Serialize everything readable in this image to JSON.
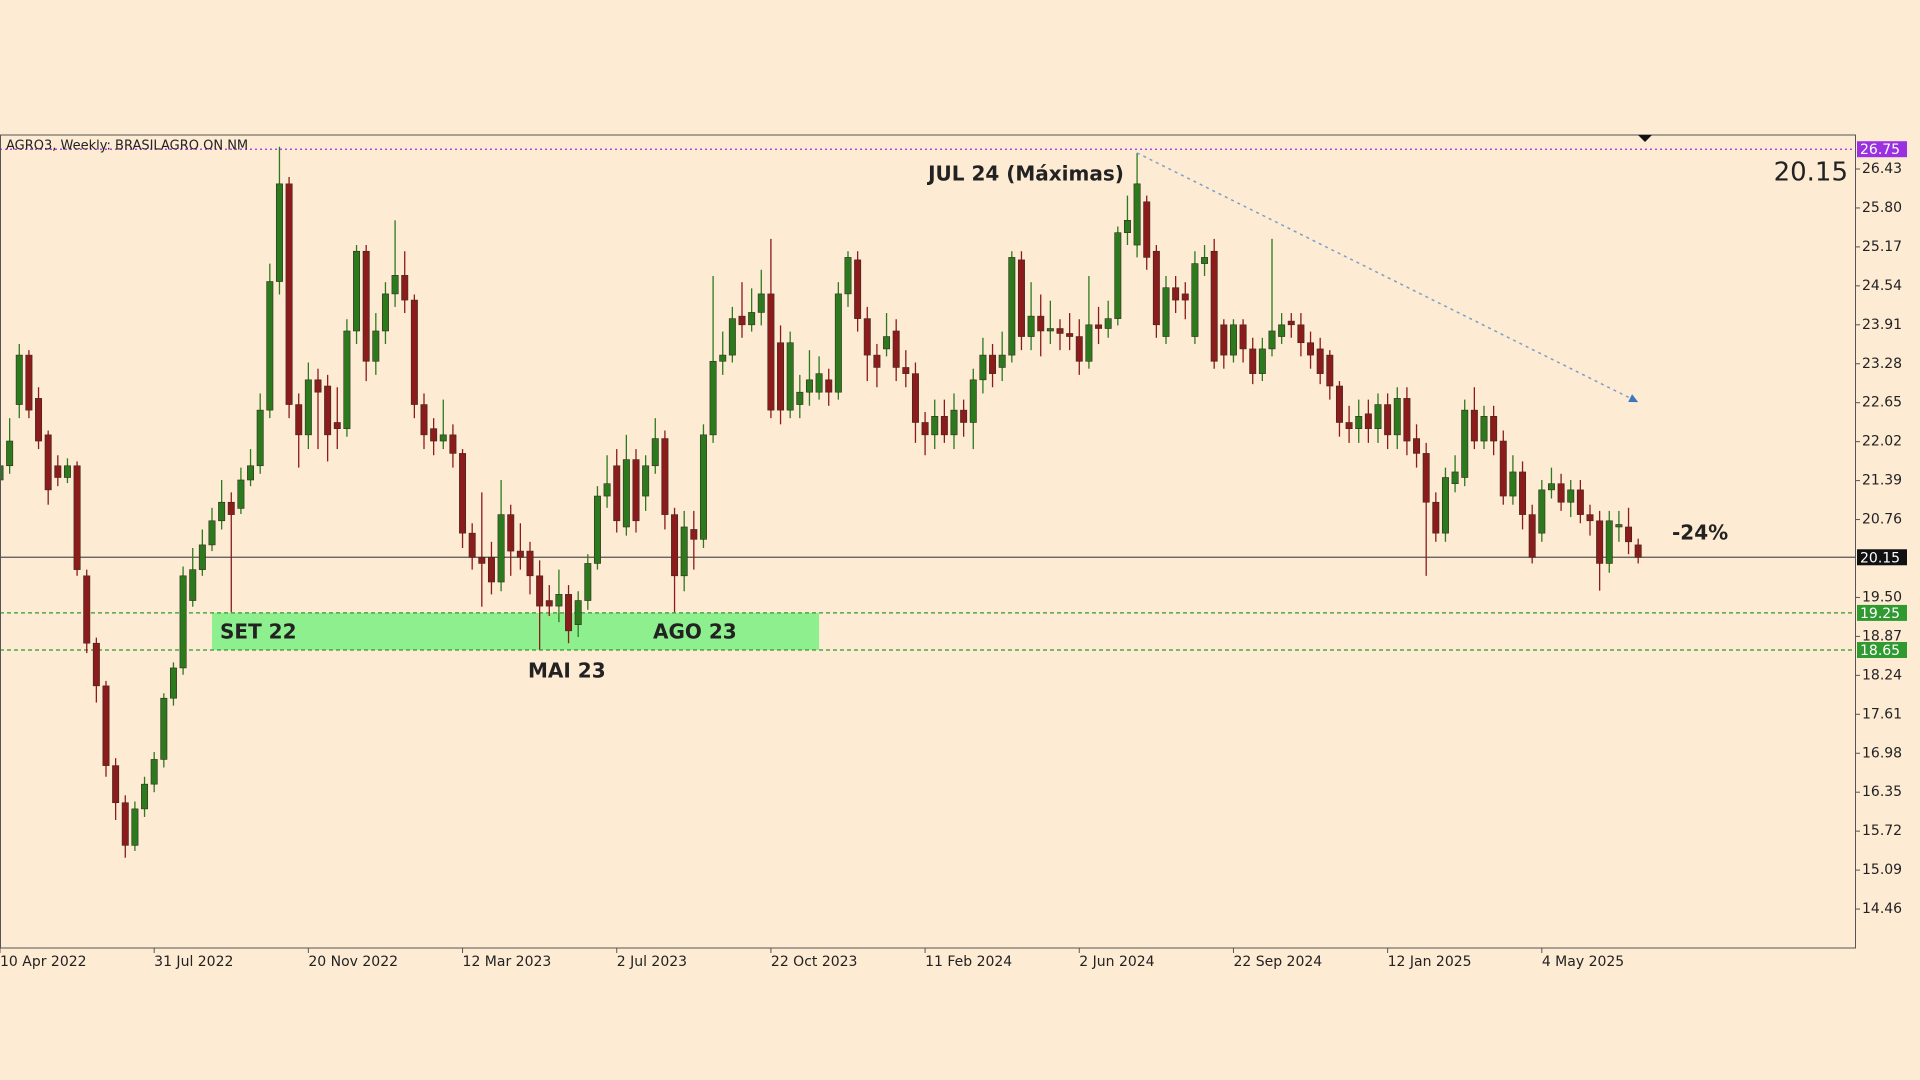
{
  "chart_data": {
    "type": "candlestick",
    "title": "AGRO3, Weekly:  BRASILAGRO  ON      NM",
    "up_color": "#2b7a1e",
    "down_color": "#8c1b1b",
    "candles": [
      [
        21.4,
        21.9,
        21.2,
        21.63
      ],
      [
        21.63,
        22.4,
        21.5,
        22.03
      ],
      [
        22.62,
        23.6,
        22.4,
        23.42
      ],
      [
        23.42,
        23.5,
        22.4,
        22.53
      ],
      [
        22.72,
        22.9,
        21.9,
        22.03
      ],
      [
        22.13,
        22.2,
        21.0,
        21.24
      ],
      [
        21.63,
        21.8,
        21.3,
        21.44
      ],
      [
        21.44,
        21.75,
        21.35,
        21.63
      ],
      [
        21.63,
        21.7,
        19.85,
        19.95
      ],
      [
        19.85,
        19.95,
        18.6,
        18.76
      ],
      [
        18.76,
        18.85,
        17.8,
        18.07
      ],
      [
        18.07,
        18.15,
        16.6,
        16.78
      ],
      [
        16.78,
        16.9,
        15.9,
        16.18
      ],
      [
        16.18,
        16.3,
        15.29,
        15.49
      ],
      [
        15.49,
        16.2,
        15.4,
        16.08
      ],
      [
        16.08,
        16.6,
        15.95,
        16.48
      ],
      [
        16.48,
        17.0,
        16.35,
        16.88
      ],
      [
        16.88,
        17.95,
        16.75,
        17.87
      ],
      [
        17.87,
        18.45,
        17.75,
        18.36
      ],
      [
        18.36,
        20.0,
        18.25,
        19.85
      ],
      [
        19.45,
        20.3,
        19.35,
        19.95
      ],
      [
        19.95,
        20.6,
        19.85,
        20.35
      ],
      [
        20.35,
        20.95,
        20.25,
        20.74
      ],
      [
        20.74,
        21.4,
        20.6,
        21.04
      ],
      [
        21.04,
        21.2,
        19.26,
        20.84
      ],
      [
        20.94,
        21.6,
        20.85,
        21.4
      ],
      [
        21.4,
        21.9,
        21.3,
        21.63
      ],
      [
        21.63,
        22.8,
        21.5,
        22.53
      ],
      [
        22.53,
        24.9,
        22.4,
        24.61
      ],
      [
        24.61,
        26.79,
        24.4,
        26.19
      ],
      [
        26.19,
        26.3,
        22.4,
        22.62
      ],
      [
        22.62,
        22.8,
        21.6,
        22.13
      ],
      [
        22.13,
        23.3,
        21.9,
        23.02
      ],
      [
        23.02,
        23.2,
        21.9,
        22.82
      ],
      [
        22.92,
        23.1,
        21.7,
        22.13
      ],
      [
        22.33,
        22.9,
        21.9,
        22.23
      ],
      [
        22.23,
        24.0,
        22.1,
        23.81
      ],
      [
        23.81,
        25.2,
        23.6,
        25.1
      ],
      [
        25.1,
        25.2,
        23.0,
        23.32
      ],
      [
        23.32,
        24.1,
        23.1,
        23.81
      ],
      [
        23.81,
        24.6,
        23.6,
        24.41
      ],
      [
        24.41,
        25.6,
        24.2,
        24.71
      ],
      [
        24.71,
        25.1,
        24.1,
        24.31
      ],
      [
        24.31,
        24.4,
        22.4,
        22.62
      ],
      [
        22.62,
        22.8,
        21.9,
        22.13
      ],
      [
        22.23,
        22.4,
        21.8,
        22.03
      ],
      [
        22.03,
        22.7,
        21.9,
        22.13
      ],
      [
        22.13,
        22.3,
        21.6,
        21.83
      ],
      [
        21.83,
        21.9,
        20.3,
        20.54
      ],
      [
        20.54,
        20.7,
        19.95,
        20.15
      ],
      [
        20.15,
        21.2,
        19.35,
        20.05
      ],
      [
        20.15,
        20.4,
        19.55,
        19.75
      ],
      [
        19.75,
        21.4,
        19.6,
        20.84
      ],
      [
        20.84,
        21.0,
        19.85,
        20.25
      ],
      [
        20.25,
        20.7,
        19.95,
        20.15
      ],
      [
        20.25,
        20.4,
        19.55,
        19.85
      ],
      [
        19.85,
        20.1,
        18.66,
        19.36
      ],
      [
        19.45,
        19.7,
        19.2,
        19.36
      ],
      [
        19.36,
        19.95,
        19.1,
        19.55
      ],
      [
        19.55,
        19.7,
        18.76,
        18.96
      ],
      [
        19.06,
        19.6,
        18.86,
        19.45
      ],
      [
        19.45,
        20.2,
        19.3,
        20.05
      ],
      [
        20.05,
        21.3,
        19.95,
        21.14
      ],
      [
        21.14,
        21.8,
        20.95,
        21.34
      ],
      [
        21.63,
        21.9,
        20.55,
        20.74
      ],
      [
        20.64,
        22.13,
        20.5,
        21.73
      ],
      [
        21.73,
        21.9,
        20.55,
        20.74
      ],
      [
        21.14,
        21.8,
        20.9,
        21.63
      ],
      [
        21.63,
        22.4,
        21.5,
        22.07
      ],
      [
        22.07,
        22.2,
        20.6,
        20.84
      ],
      [
        20.84,
        20.95,
        19.26,
        19.85
      ],
      [
        19.85,
        20.9,
        19.6,
        20.64
      ],
      [
        20.6,
        20.9,
        19.95,
        20.44
      ],
      [
        20.44,
        22.3,
        20.3,
        22.13
      ],
      [
        22.13,
        24.7,
        22.0,
        23.32
      ],
      [
        23.32,
        23.8,
        23.1,
        23.42
      ],
      [
        23.42,
        24.2,
        23.3,
        24.01
      ],
      [
        24.05,
        24.6,
        23.7,
        23.91
      ],
      [
        23.91,
        24.5,
        23.8,
        24.11
      ],
      [
        24.11,
        24.8,
        23.9,
        24.41
      ],
      [
        24.41,
        25.3,
        22.4,
        22.53
      ],
      [
        23.62,
        23.9,
        22.3,
        22.53
      ],
      [
        22.53,
        23.8,
        22.4,
        23.62
      ],
      [
        22.62,
        23.1,
        22.4,
        22.82
      ],
      [
        22.82,
        23.5,
        22.6,
        23.02
      ],
      [
        22.82,
        23.4,
        22.7,
        23.12
      ],
      [
        23.02,
        23.2,
        22.6,
        22.82
      ],
      [
        22.82,
        24.6,
        22.7,
        24.41
      ],
      [
        24.41,
        25.1,
        24.2,
        25.0
      ],
      [
        24.96,
        25.1,
        23.8,
        24.01
      ],
      [
        24.01,
        24.2,
        23.0,
        23.42
      ],
      [
        23.42,
        23.6,
        22.9,
        23.22
      ],
      [
        23.52,
        24.1,
        23.4,
        23.72
      ],
      [
        23.81,
        24.0,
        23.0,
        23.22
      ],
      [
        23.22,
        23.5,
        22.9,
        23.12
      ],
      [
        23.12,
        23.3,
        22.0,
        22.33
      ],
      [
        22.33,
        22.5,
        21.8,
        22.13
      ],
      [
        22.13,
        22.7,
        21.9,
        22.43
      ],
      [
        22.43,
        22.7,
        22.0,
        22.13
      ],
      [
        22.13,
        22.8,
        21.9,
        22.53
      ],
      [
        22.53,
        22.7,
        22.1,
        22.33
      ],
      [
        22.33,
        23.2,
        21.9,
        23.02
      ],
      [
        23.02,
        23.7,
        22.8,
        23.42
      ],
      [
        23.42,
        23.6,
        22.9,
        23.12
      ],
      [
        23.22,
        23.8,
        23.0,
        23.42
      ],
      [
        23.42,
        25.1,
        23.3,
        25.0
      ],
      [
        24.96,
        25.1,
        23.5,
        23.72
      ],
      [
        23.72,
        24.6,
        23.5,
        24.05
      ],
      [
        24.05,
        24.4,
        23.4,
        23.81
      ],
      [
        23.81,
        24.3,
        23.6,
        23.85
      ],
      [
        23.85,
        24.0,
        23.5,
        23.77
      ],
      [
        23.77,
        24.1,
        23.5,
        23.72
      ],
      [
        23.72,
        24.0,
        23.1,
        23.32
      ],
      [
        23.32,
        24.7,
        23.2,
        23.91
      ],
      [
        23.91,
        24.2,
        23.6,
        23.85
      ],
      [
        23.85,
        24.3,
        23.7,
        24.01
      ],
      [
        24.01,
        25.5,
        23.9,
        25.4
      ],
      [
        25.4,
        26.0,
        25.2,
        25.6
      ],
      [
        25.2,
        26.69,
        25.0,
        26.19
      ],
      [
        25.9,
        26.0,
        24.8,
        25.0
      ],
      [
        25.1,
        25.2,
        23.7,
        23.91
      ],
      [
        23.72,
        24.7,
        23.6,
        24.51
      ],
      [
        24.51,
        24.7,
        24.1,
        24.31
      ],
      [
        24.41,
        24.6,
        24.0,
        24.31
      ],
      [
        23.72,
        25.1,
        23.6,
        24.9
      ],
      [
        24.9,
        25.2,
        24.7,
        25.0
      ],
      [
        25.1,
        25.3,
        23.2,
        23.32
      ],
      [
        23.91,
        24.0,
        23.2,
        23.42
      ],
      [
        23.42,
        24.0,
        23.3,
        23.91
      ],
      [
        23.91,
        24.0,
        23.3,
        23.52
      ],
      [
        23.52,
        23.7,
        22.95,
        23.12
      ],
      [
        23.12,
        23.7,
        23.0,
        23.52
      ],
      [
        23.52,
        25.3,
        23.4,
        23.81
      ],
      [
        23.72,
        24.1,
        23.6,
        23.91
      ],
      [
        23.97,
        24.1,
        23.7,
        23.91
      ],
      [
        23.91,
        24.1,
        23.4,
        23.62
      ],
      [
        23.62,
        23.8,
        23.2,
        23.42
      ],
      [
        23.52,
        23.7,
        22.95,
        23.12
      ],
      [
        23.42,
        23.5,
        22.7,
        22.92
      ],
      [
        22.92,
        23.0,
        22.1,
        22.33
      ],
      [
        22.33,
        22.6,
        22.0,
        22.23
      ],
      [
        22.23,
        22.7,
        22.0,
        22.43
      ],
      [
        22.47,
        22.7,
        22.0,
        22.23
      ],
      [
        22.23,
        22.8,
        22.0,
        22.62
      ],
      [
        22.62,
        22.8,
        21.9,
        22.13
      ],
      [
        22.13,
        22.9,
        21.9,
        22.72
      ],
      [
        22.72,
        22.9,
        21.8,
        22.03
      ],
      [
        22.07,
        22.3,
        21.6,
        21.83
      ],
      [
        21.83,
        22.0,
        19.85,
        21.04
      ],
      [
        21.04,
        21.2,
        20.4,
        20.54
      ],
      [
        20.54,
        21.6,
        20.4,
        21.44
      ],
      [
        21.34,
        21.8,
        21.2,
        21.53
      ],
      [
        21.44,
        22.7,
        21.3,
        22.53
      ],
      [
        22.53,
        22.9,
        21.9,
        22.03
      ],
      [
        22.03,
        22.6,
        21.9,
        22.43
      ],
      [
        22.43,
        22.6,
        21.8,
        22.03
      ],
      [
        22.03,
        22.2,
        21.0,
        21.14
      ],
      [
        21.14,
        21.8,
        21.0,
        21.53
      ],
      [
        21.53,
        21.7,
        20.6,
        20.84
      ],
      [
        20.84,
        21.0,
        20.05,
        20.15
      ],
      [
        20.54,
        21.4,
        20.4,
        21.24
      ],
      [
        21.24,
        21.6,
        21.1,
        21.34
      ],
      [
        21.34,
        21.5,
        20.9,
        21.04
      ],
      [
        21.04,
        21.4,
        20.8,
        21.24
      ],
      [
        21.24,
        21.4,
        20.7,
        20.84
      ],
      [
        20.84,
        21.0,
        20.5,
        20.74
      ],
      [
        20.74,
        20.9,
        19.61,
        20.05
      ],
      [
        20.05,
        20.9,
        19.9,
        20.74
      ],
      [
        20.64,
        20.9,
        20.4,
        20.68
      ],
      [
        20.64,
        20.95,
        20.2,
        20.4
      ],
      [
        20.35,
        20.45,
        20.05,
        20.15
      ]
    ],
    "xlim": [
      0,
      192.5
    ],
    "xticks": [
      {
        "value": 0,
        "label": "10 Apr 2022"
      },
      {
        "value": 16,
        "label": "31 Jul 2022"
      },
      {
        "value": 32,
        "label": "20 Nov 2022"
      },
      {
        "value": 48,
        "label": "12 Mar 2023"
      },
      {
        "value": 64,
        "label": "2 Jul 2023"
      },
      {
        "value": 80,
        "label": "22 Oct 2023"
      },
      {
        "value": 96,
        "label": "11 Feb 2024"
      },
      {
        "value": 112,
        "label": "2 Jun 2024"
      },
      {
        "value": 128,
        "label": "22 Sep 2024"
      },
      {
        "value": 144,
        "label": "12 Jan 2025"
      },
      {
        "value": 160,
        "label": "4 May 2025"
      }
    ],
    "ylim": [
      13.83,
      26.98
    ],
    "yticks": [
      26.43,
      {
        "value": 25.8,
        "label": "25.80"
      },
      25.17,
      24.54,
      23.91,
      23.28,
      22.65,
      22.02,
      21.39,
      20.76,
      {
        "value": 19.5,
        "label": "19.50"
      },
      18.87,
      18.24,
      17.61,
      16.98,
      16.35,
      15.72,
      15.09,
      14.46
    ],
    "levels": [
      {
        "value": 26.75,
        "color": "#9b30e0",
        "style": "dotted"
      },
      {
        "value": 20.15,
        "color": "#555555",
        "style": "solid"
      },
      {
        "value": 19.25,
        "color": "#2f9a2f",
        "style": "dashed"
      },
      {
        "value": 18.65,
        "color": "#2f9a2f",
        "style": "dashed"
      }
    ],
    "zone": {
      "xrange": [
        22,
        85
      ],
      "color": "#8eef8e"
    },
    "trendline": {
      "x": [
        118,
        170
      ],
      "y": [
        26.69,
        22.66
      ],
      "color": "#7aa0c8"
    },
    "annotations": [
      "JUL 24 (Máximas)",
      "SET 22",
      "AGO 23",
      "MAI 23",
      "-24%"
    ]
  }
}
